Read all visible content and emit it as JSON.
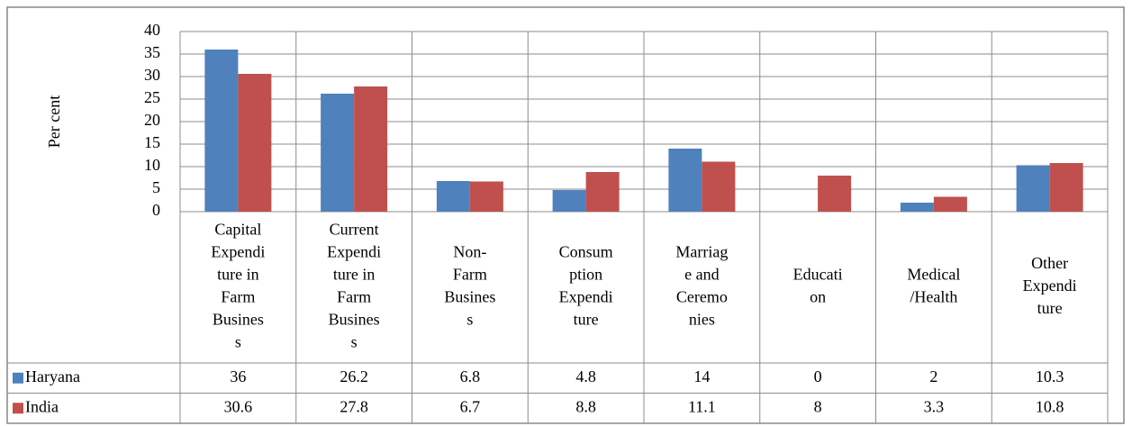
{
  "chart_data": {
    "type": "bar",
    "y_label": "Per cent",
    "categories": [
      "Capital Expenditure in Farm Business",
      "Current Expenditure in Farm Business",
      "Non-Farm Business",
      "Consumption Expenditure",
      "Marriage and Ceremonies",
      "Education",
      "Medical /Health",
      "Other Expenditure"
    ],
    "series": [
      {
        "name": "Haryana",
        "color": "#4f81bd",
        "values": [
          36,
          26.2,
          6.8,
          4.8,
          14,
          0,
          2,
          10.3
        ]
      },
      {
        "name": "India",
        "color": "#c0504d",
        "values": [
          30.6,
          27.8,
          6.7,
          8.8,
          11.1,
          8,
          3.3,
          10.8
        ]
      }
    ],
    "ylim": [
      0,
      40
    ],
    "yticks": [
      0,
      5,
      10,
      15,
      20,
      25,
      30,
      35,
      40
    ],
    "grid": true,
    "data_table": true
  }
}
